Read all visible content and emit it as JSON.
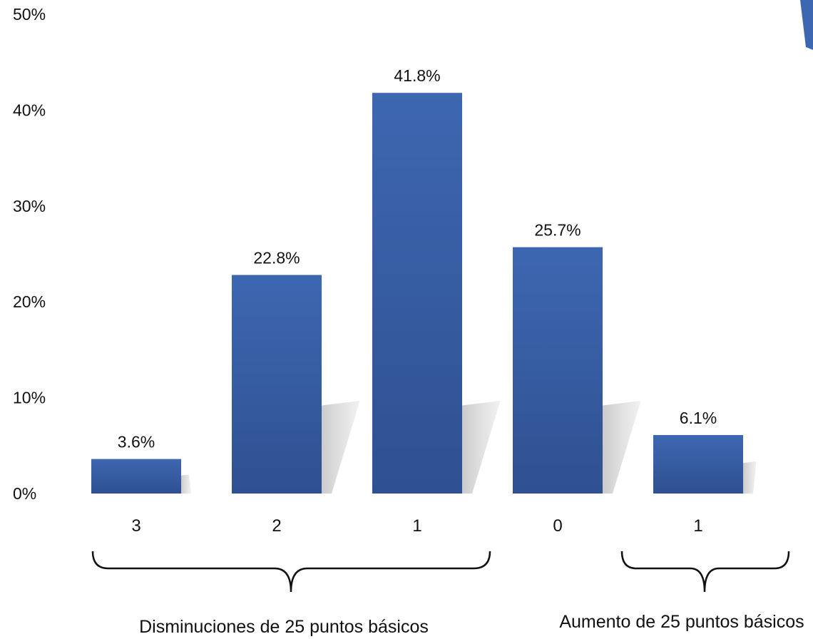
{
  "chart_data": {
    "type": "bar",
    "categories": [
      "3",
      "2",
      "1",
      "0",
      "1"
    ],
    "values": [
      3.6,
      22.8,
      41.8,
      25.7,
      6.1
    ],
    "data_labels": [
      "3.6%",
      "22.8%",
      "41.8%",
      "25.7%",
      "6.1%"
    ],
    "yticks": [
      "0%",
      "10%",
      "20%",
      "30%",
      "40%",
      "50%"
    ],
    "ylim": [
      0,
      50
    ],
    "grid": false,
    "legend": "none",
    "bar_color": "#3660a8",
    "groups": [
      {
        "label": "Disminuciones de 25 puntos básicos"
      },
      {
        "label": "Aumento de 25 puntos básicos"
      }
    ]
  }
}
